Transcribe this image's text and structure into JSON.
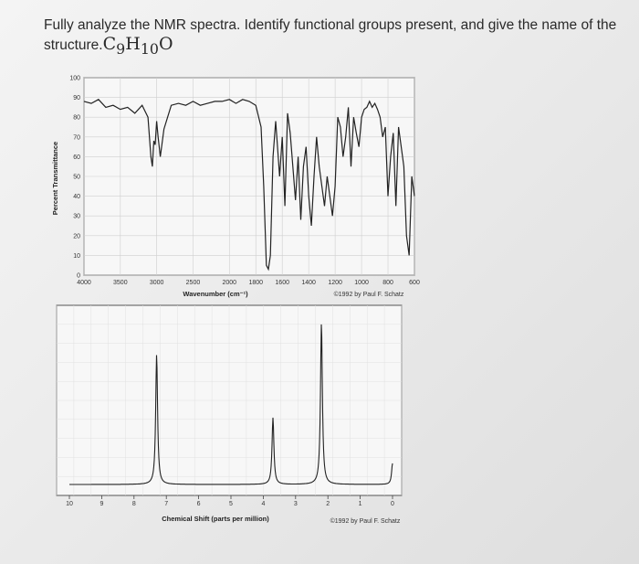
{
  "question": {
    "text": "Fully analyze the NMR spectra. Identify functional groups present, and give the name of the structure.",
    "formula_c": "C",
    "formula_c_sub": "9",
    "formula_h": "H",
    "formula_h_sub": "10",
    "formula_o": "O"
  },
  "chart_data": [
    {
      "type": "line",
      "xlabel": "Wavenumber (cm⁻¹)",
      "ylabel": "Percent Transmittance",
      "xlim": [
        4000,
        600
      ],
      "ylim": [
        0,
        100
      ],
      "x_ticks": [
        "4000",
        "3500",
        "3000",
        "2500",
        "2000",
        "1800",
        "1600",
        "1400",
        "1200",
        "1000",
        "800",
        "600"
      ],
      "y_ticks": [
        "0",
        "10",
        "20",
        "30",
        "40",
        "50",
        "60",
        "70",
        "80",
        "90",
        "100"
      ],
      "copyright": "©1992 by Paul F. Schatz",
      "series": [
        {
          "x": [
            4000,
            3900,
            3800,
            3700,
            3600,
            3500,
            3400,
            3300,
            3200,
            3120,
            3080,
            3060,
            3040,
            3020,
            3000,
            2980,
            2950,
            2900,
            2850,
            2800,
            2700,
            2600,
            2500,
            2400,
            2300,
            2200,
            2100,
            2000,
            1950,
            1900,
            1850,
            1800,
            1760,
            1740,
            1720,
            1705,
            1690,
            1670,
            1650,
            1620,
            1600,
            1580,
            1560,
            1540,
            1500,
            1480,
            1460,
            1440,
            1420,
            1400,
            1380,
            1360,
            1340,
            1320,
            1300,
            1280,
            1260,
            1240,
            1220,
            1200,
            1180,
            1160,
            1140,
            1120,
            1100,
            1080,
            1060,
            1040,
            1020,
            1000,
            980,
            960,
            940,
            920,
            900,
            880,
            860,
            840,
            820,
            800,
            780,
            760,
            740,
            720,
            700,
            680,
            660,
            640,
            620,
            600
          ],
          "y": [
            88,
            87,
            89,
            85,
            86,
            84,
            85,
            82,
            86,
            80,
            60,
            55,
            68,
            66,
            78,
            70,
            60,
            74,
            80,
            86,
            87,
            86,
            88,
            86,
            87,
            88,
            88,
            89,
            87,
            89,
            88,
            86,
            75,
            45,
            5,
            3,
            10,
            60,
            78,
            50,
            70,
            35,
            82,
            72,
            38,
            60,
            28,
            55,
            65,
            40,
            25,
            50,
            70,
            55,
            45,
            35,
            50,
            40,
            30,
            45,
            80,
            75,
            60,
            70,
            85,
            55,
            80,
            72,
            65,
            80,
            84,
            85,
            88,
            85,
            87,
            84,
            80,
            70,
            75,
            40,
            60,
            72,
            35,
            75,
            65,
            55,
            20,
            10,
            50,
            40
          ]
        }
      ]
    },
    {
      "type": "line",
      "xlabel": "Chemical Shift (parts per million)",
      "xlim": [
        10,
        0
      ],
      "x_ticks": [
        "10",
        "9",
        "8",
        "7",
        "6",
        "5",
        "4",
        "3",
        "2",
        "1",
        "0"
      ],
      "copyright": "©1992 by Paul F. Schatz",
      "peaks": [
        {
          "ppm": 7.3,
          "height": 0.74
        },
        {
          "ppm": 3.7,
          "height": 0.38
        },
        {
          "ppm": 2.2,
          "height": 0.92
        },
        {
          "ppm": 0.0,
          "height": 0.12
        }
      ]
    }
  ]
}
